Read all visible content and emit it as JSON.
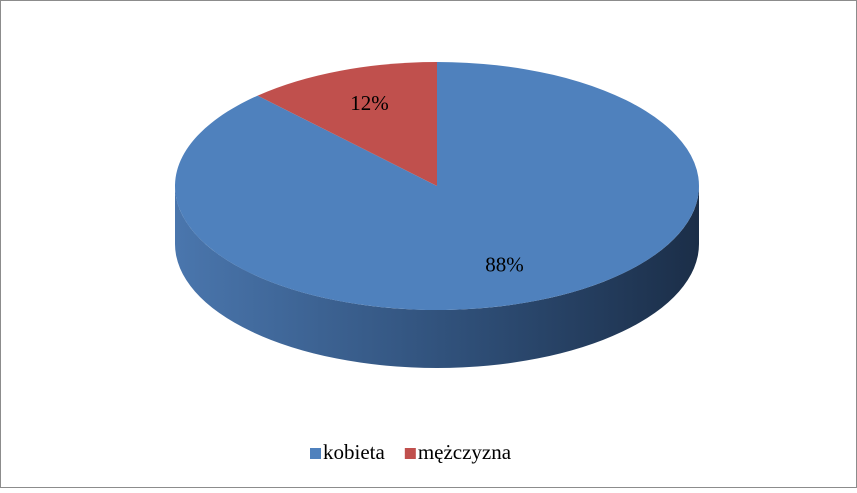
{
  "chart_data": {
    "type": "pie",
    "categories": [
      "kobieta",
      "mężczyzna"
    ],
    "values": [
      88,
      12
    ],
    "value_labels": [
      "88%",
      "12%"
    ],
    "colors": [
      "#4f81bd",
      "#c0504d"
    ],
    "legend": "bottom"
  }
}
